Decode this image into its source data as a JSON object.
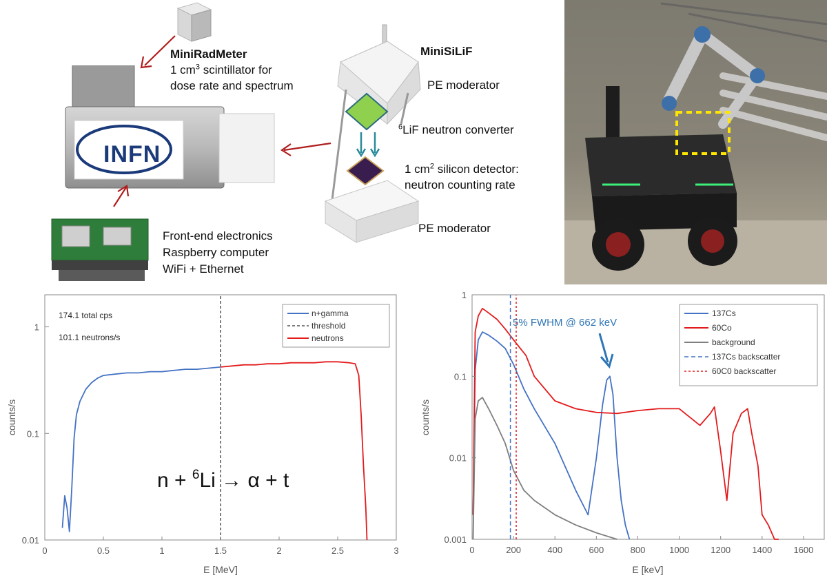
{
  "top": {
    "mini_rad_meter": {
      "title": "MiniRadMeter",
      "line1_pre": "1 cm",
      "line1_sup": "3",
      "line1_post": " scintillator for",
      "line2": "dose rate and spectrum"
    },
    "electronics": {
      "line1": "Front-end electronics",
      "line2": "Raspberry computer",
      "line3": "WiFi + Ethernet"
    },
    "logo_text": "INFN",
    "mini_silif": {
      "title": "MiniSiLiF",
      "pe_top": "PE moderator",
      "converter_sup": "6",
      "converter": "LiF neutron converter",
      "si_line1_pre": "1 cm",
      "si_line1_sup": "2",
      "si_line1_post": " silicon detector:",
      "si_line2": "neutron counting rate",
      "pe_bottom": "PE moderator"
    }
  },
  "chart_data": [
    {
      "type": "line",
      "title": "",
      "xlabel": "E [MeV]",
      "ylabel": "counts/s",
      "xlim": [
        0,
        3
      ],
      "ylim": [
        0.01,
        2
      ],
      "yscale": "log",
      "x_ticks": [
        "0",
        "0.5",
        "1",
        "1.5",
        "2",
        "2.5",
        "3"
      ],
      "y_ticks": [
        "0.01",
        "0.1",
        "1"
      ],
      "legend": "top-right",
      "annotations": [
        "174.1 total cps",
        "101.1 neutrons/s"
      ],
      "reaction": {
        "pre": "n + ",
        "sup": "6",
        "post": "Li → α + t"
      },
      "series": [
        {
          "name": "n+gamma",
          "color": "#4472c4",
          "x": [
            0.15,
            0.17,
            0.19,
            0.21,
            0.23,
            0.25,
            0.27,
            0.3,
            0.35,
            0.4,
            0.45,
            0.5,
            0.6,
            0.7,
            0.8,
            0.9,
            1.0,
            1.1,
            1.2,
            1.3,
            1.4,
            1.5
          ],
          "y": [
            0.013,
            0.026,
            0.02,
            0.012,
            0.03,
            0.09,
            0.15,
            0.2,
            0.26,
            0.3,
            0.33,
            0.35,
            0.36,
            0.37,
            0.37,
            0.38,
            0.38,
            0.39,
            0.4,
            0.4,
            0.41,
            0.42
          ]
        },
        {
          "name": "threshold",
          "color": "#555555",
          "x": [
            1.5,
            1.5
          ],
          "y": [
            0.01,
            2
          ]
        },
        {
          "name": "neutrons",
          "color": "#e31a1c",
          "x": [
            1.5,
            1.6,
            1.7,
            1.8,
            1.9,
            2.0,
            2.1,
            2.2,
            2.3,
            2.4,
            2.5,
            2.6,
            2.65,
            2.68,
            2.7,
            2.72,
            2.74,
            2.75
          ],
          "y": [
            0.42,
            0.43,
            0.44,
            0.44,
            0.45,
            0.45,
            0.46,
            0.46,
            0.46,
            0.47,
            0.47,
            0.46,
            0.45,
            0.35,
            0.15,
            0.05,
            0.02,
            0.01
          ]
        }
      ]
    },
    {
      "type": "line",
      "title": "",
      "xlabel": "E [keV]",
      "ylabel": "counts/s",
      "xlim": [
        0,
        1700
      ],
      "ylim": [
        0.001,
        1
      ],
      "yscale": "log",
      "x_ticks": [
        "0",
        "200",
        "400",
        "600",
        "800",
        "1000",
        "1200",
        "1400",
        "1600"
      ],
      "y_ticks": [
        "0.001",
        "0.01",
        "0.1",
        "1"
      ],
      "legend": "top-right",
      "annotations": [
        "5% FWHM @ 662 keV"
      ],
      "series": [
        {
          "name": "137Cs",
          "color": "#4472c4",
          "x": [
            5,
            15,
            30,
            50,
            80,
            120,
            160,
            200,
            250,
            300,
            400,
            500,
            560,
            600,
            630,
            650,
            665,
            680,
            700,
            720,
            740,
            760
          ],
          "y": [
            0.002,
            0.12,
            0.28,
            0.35,
            0.32,
            0.27,
            0.22,
            0.14,
            0.07,
            0.04,
            0.015,
            0.004,
            0.002,
            0.01,
            0.045,
            0.09,
            0.1,
            0.06,
            0.01,
            0.003,
            0.0015,
            0.001
          ]
        },
        {
          "name": "60Co",
          "color": "#e31a1c",
          "x": [
            5,
            15,
            30,
            50,
            80,
            120,
            160,
            210,
            260,
            300,
            400,
            500,
            600,
            700,
            800,
            900,
            1000,
            1100,
            1150,
            1170,
            1200,
            1230,
            1260,
            1300,
            1330,
            1350,
            1380,
            1400,
            1430,
            1460,
            1480
          ],
          "y": [
            0.002,
            0.35,
            0.55,
            0.68,
            0.6,
            0.5,
            0.38,
            0.26,
            0.18,
            0.1,
            0.05,
            0.04,
            0.036,
            0.035,
            0.038,
            0.04,
            0.04,
            0.025,
            0.035,
            0.042,
            0.012,
            0.003,
            0.02,
            0.035,
            0.04,
            0.02,
            0.008,
            0.002,
            0.0015,
            0.001,
            0.001
          ]
        },
        {
          "name": "background",
          "color": "#7f7f7f",
          "x": [
            5,
            15,
            30,
            50,
            80,
            120,
            160,
            200,
            250,
            300,
            400,
            500,
            600,
            700
          ],
          "y": [
            0.001,
            0.03,
            0.05,
            0.055,
            0.04,
            0.025,
            0.015,
            0.007,
            0.004,
            0.003,
            0.002,
            0.0015,
            0.0012,
            0.001
          ]
        },
        {
          "name": "137Cs backscatter",
          "color": "#4472c4",
          "x": [
            185,
            185
          ],
          "y": [
            0.001,
            1
          ]
        },
        {
          "name": "60C0 backscatter",
          "color": "#e31a1c",
          "x": [
            213,
            213
          ],
          "y": [
            0.001,
            1
          ]
        }
      ]
    }
  ]
}
